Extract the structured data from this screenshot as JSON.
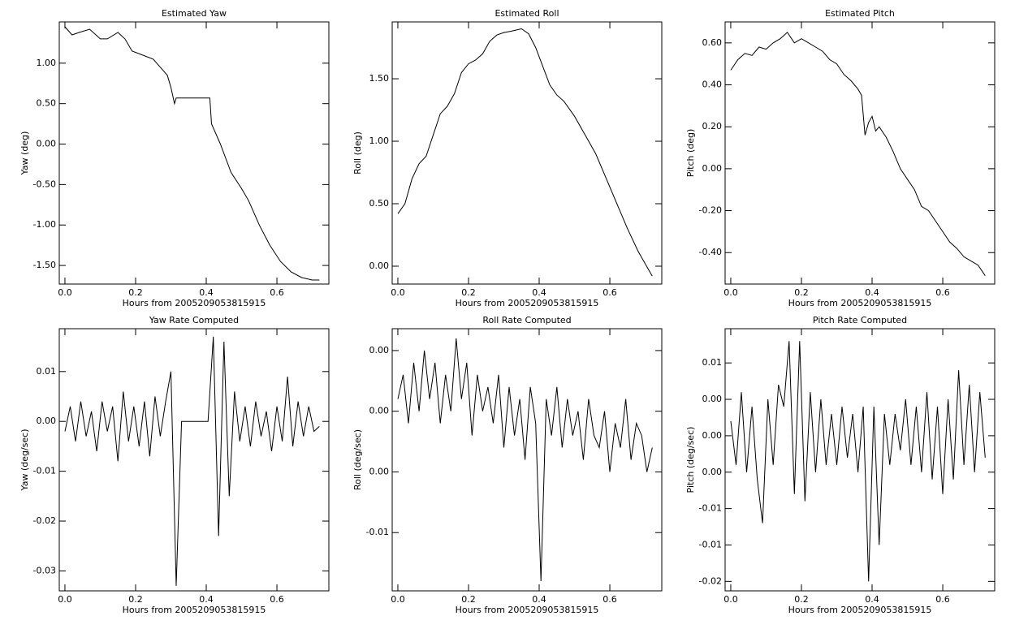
{
  "chart_data": [
    {
      "type": "line",
      "title": "Estimated Yaw",
      "xlabel": "Hours from 2005209053815915",
      "ylabel": "Yaw (deg)",
      "x": [
        0,
        0.02,
        0.04,
        0.07,
        0.1,
        0.12,
        0.15,
        0.17,
        0.19,
        0.22,
        0.25,
        0.27,
        0.29,
        0.3,
        0.31,
        0.315,
        0.41,
        0.415,
        0.44,
        0.47,
        0.5,
        0.52,
        0.55,
        0.58,
        0.61,
        0.64,
        0.67,
        0.7,
        0.72
      ],
      "values": [
        1.45,
        1.35,
        1.38,
        1.42,
        1.3,
        1.3,
        1.38,
        1.3,
        1.15,
        1.1,
        1.05,
        0.95,
        0.85,
        0.7,
        0.5,
        0.57,
        0.57,
        0.25,
        0,
        -0.35,
        -0.55,
        -0.7,
        -1.0,
        -1.25,
        -1.45,
        -1.58,
        -1.65,
        -1.68,
        -1.68
      ],
      "color": "#000000",
      "xlim": [
        -0.016,
        0.747
      ],
      "ylim": [
        -1.73,
        1.51
      ],
      "xticks": [
        {
          "value": 0,
          "label": "0.0"
        },
        {
          "value": 0.2,
          "label": "0.2"
        },
        {
          "value": 0.4,
          "label": "0.4"
        },
        {
          "value": 0.6,
          "label": "0.6"
        }
      ],
      "yticks": [
        {
          "value": -1.5,
          "label": "-1.50"
        },
        {
          "value": -1,
          "label": "-1.00"
        },
        {
          "value": -0.5,
          "label": "-0.50"
        },
        {
          "value": 0,
          "label": "0.00"
        },
        {
          "value": 0.5,
          "label": "0.50"
        },
        {
          "value": 1,
          "label": "1.00"
        }
      ]
    },
    {
      "type": "line",
      "title": "Estimated Roll",
      "xlabel": "Hours from 2005209053815915",
      "ylabel": "Roll (deg)",
      "x": [
        0,
        0.02,
        0.04,
        0.06,
        0.08,
        0.1,
        0.12,
        0.14,
        0.16,
        0.18,
        0.2,
        0.22,
        0.24,
        0.26,
        0.28,
        0.3,
        0.32,
        0.35,
        0.37,
        0.39,
        0.41,
        0.43,
        0.45,
        0.47,
        0.5,
        0.53,
        0.56,
        0.59,
        0.62,
        0.65,
        0.68,
        0.7,
        0.72
      ],
      "values": [
        0.42,
        0.5,
        0.7,
        0.82,
        0.88,
        1.05,
        1.22,
        1.28,
        1.38,
        1.55,
        1.62,
        1.65,
        1.7,
        1.8,
        1.85,
        1.87,
        1.88,
        1.9,
        1.86,
        1.75,
        1.6,
        1.45,
        1.37,
        1.32,
        1.2,
        1.05,
        0.9,
        0.7,
        0.5,
        0.3,
        0.12,
        0.02,
        -0.08
      ],
      "color": "#000000",
      "xlim": [
        -0.016,
        0.747
      ],
      "ylim": [
        -0.143,
        1.955
      ],
      "xticks": [
        {
          "value": 0,
          "label": "0.0"
        },
        {
          "value": 0.2,
          "label": "0.2"
        },
        {
          "value": 0.4,
          "label": "0.4"
        },
        {
          "value": 0.6,
          "label": "0.6"
        }
      ],
      "yticks": [
        {
          "value": 0,
          "label": "0.00"
        },
        {
          "value": 0.5,
          "label": "0.50"
        },
        {
          "value": 1,
          "label": "1.00"
        },
        {
          "value": 1.5,
          "label": "1.50"
        }
      ]
    },
    {
      "type": "line",
      "title": "Estimated Pitch",
      "xlabel": "Hours from 2005209053815915",
      "ylabel": "Pitch (deg)",
      "x": [
        0,
        0.02,
        0.04,
        0.06,
        0.08,
        0.1,
        0.12,
        0.14,
        0.16,
        0.18,
        0.2,
        0.22,
        0.24,
        0.26,
        0.28,
        0.3,
        0.32,
        0.34,
        0.36,
        0.37,
        0.38,
        0.39,
        0.4,
        0.41,
        0.42,
        0.44,
        0.46,
        0.48,
        0.5,
        0.52,
        0.54,
        0.56,
        0.58,
        0.6,
        0.62,
        0.64,
        0.66,
        0.68,
        0.7,
        0.72
      ],
      "values": [
        0.47,
        0.52,
        0.55,
        0.54,
        0.58,
        0.57,
        0.6,
        0.62,
        0.65,
        0.6,
        0.62,
        0.6,
        0.58,
        0.56,
        0.52,
        0.5,
        0.45,
        0.42,
        0.38,
        0.35,
        0.16,
        0.22,
        0.25,
        0.18,
        0.2,
        0.15,
        0.08,
        0,
        -0.05,
        -0.1,
        -0.18,
        -0.2,
        -0.25,
        -0.3,
        -0.35,
        -0.38,
        -0.42,
        -0.44,
        -0.46,
        -0.51
      ],
      "color": "#000000",
      "xlim": [
        -0.016,
        0.747
      ],
      "ylim": [
        -0.55,
        0.7
      ],
      "xticks": [
        {
          "value": 0,
          "label": "0.0"
        },
        {
          "value": 0.2,
          "label": "0.2"
        },
        {
          "value": 0.4,
          "label": "0.4"
        },
        {
          "value": 0.6,
          "label": "0.6"
        }
      ],
      "yticks": [
        {
          "value": -0.4,
          "label": "-0.40"
        },
        {
          "value": -0.2,
          "label": "-0.20"
        },
        {
          "value": 0,
          "label": "0.00"
        },
        {
          "value": 0.2,
          "label": "0.20"
        },
        {
          "value": 0.4,
          "label": "0.40"
        },
        {
          "value": 0.6,
          "label": "0.60"
        }
      ]
    },
    {
      "type": "line",
      "title": "Yaw Rate Computed",
      "xlabel": "Hours from 2005209053815915",
      "ylabel": "Yaw (deg/sec)",
      "x": [
        0,
        0.015,
        0.03,
        0.045,
        0.06,
        0.075,
        0.09,
        0.105,
        0.12,
        0.135,
        0.15,
        0.165,
        0.18,
        0.195,
        0.21,
        0.225,
        0.24,
        0.255,
        0.27,
        0.285,
        0.3,
        0.315,
        0.33,
        0.345,
        0.36,
        0.375,
        0.39,
        0.405,
        0.42,
        0.435,
        0.45,
        0.465,
        0.48,
        0.495,
        0.51,
        0.525,
        0.54,
        0.555,
        0.57,
        0.585,
        0.6,
        0.615,
        0.63,
        0.645,
        0.66,
        0.675,
        0.69,
        0.705,
        0.72
      ],
      "values": [
        -0.002,
        0.003,
        -0.004,
        0.004,
        -0.003,
        0.002,
        -0.006,
        0.004,
        -0.002,
        0.003,
        -0.008,
        0.006,
        -0.004,
        0.003,
        -0.005,
        0.004,
        -0.007,
        0.005,
        -0.003,
        0.004,
        0.01,
        -0.033,
        0,
        0,
        0,
        0,
        0,
        0,
        0.017,
        -0.023,
        0.016,
        -0.015,
        0.006,
        -0.004,
        0.003,
        -0.005,
        0.004,
        -0.003,
        0.002,
        -0.006,
        0.003,
        -0.004,
        0.009,
        -0.005,
        0.004,
        -0.003,
        0.003,
        -0.002,
        -0.001
      ],
      "color": "#000000",
      "xlim": [
        -0.016,
        0.747
      ],
      "ylim": [
        -0.034,
        0.0186
      ],
      "xticks": [
        {
          "value": 0,
          "label": "0.0"
        },
        {
          "value": 0.2,
          "label": "0.2"
        },
        {
          "value": 0.4,
          "label": "0.4"
        },
        {
          "value": 0.6,
          "label": "0.6"
        }
      ],
      "yticks": [
        -0.03,
        -0.02,
        -0.01,
        {
          "value": 0,
          "label": "0.00"
        },
        0.01
      ]
    },
    {
      "type": "line",
      "title": "Roll Rate Computed",
      "xlabel": "Hours from 2005209053815915",
      "ylabel": "Roll (deg/sec)",
      "x": [
        0,
        0.015,
        0.03,
        0.045,
        0.06,
        0.075,
        0.09,
        0.105,
        0.12,
        0.135,
        0.15,
        0.165,
        0.18,
        0.195,
        0.21,
        0.225,
        0.24,
        0.255,
        0.27,
        0.285,
        0.3,
        0.315,
        0.33,
        0.345,
        0.36,
        0.375,
        0.39,
        0.405,
        0.42,
        0.435,
        0.45,
        0.465,
        0.48,
        0.495,
        0.51,
        0.525,
        0.54,
        0.555,
        0.57,
        0.585,
        0.6,
        0.615,
        0.63,
        0.645,
        0.66,
        0.675,
        0.69,
        0.705,
        0.72
      ],
      "values": [
        0.001,
        0.003,
        -0.001,
        0.004,
        0,
        0.005,
        0.001,
        0.004,
        -0.001,
        0.003,
        0,
        0.006,
        0.001,
        0.004,
        -0.002,
        0.003,
        0,
        0.002,
        -0.001,
        0.003,
        -0.003,
        0.002,
        -0.002,
        0.001,
        -0.004,
        0.002,
        -0.001,
        -0.014,
        0.001,
        -0.002,
        0.002,
        -0.003,
        0.001,
        -0.002,
        0,
        -0.004,
        0.001,
        -0.002,
        -0.003,
        0,
        -0.005,
        -0.001,
        -0.003,
        0.001,
        -0.004,
        -0.001,
        -0.002,
        -0.005,
        -0.003
      ],
      "color": "#000000",
      "xlim": [
        -0.016,
        0.747
      ],
      "ylim": [
        -0.0148,
        0.0068
      ],
      "xticks": [
        {
          "value": 0,
          "label": "0.0"
        },
        {
          "value": 0.2,
          "label": "0.2"
        },
        {
          "value": 0.4,
          "label": "0.4"
        },
        {
          "value": 0.6,
          "label": "0.6"
        }
      ],
      "yticks": [
        {
          "value": -0.01,
          "label": "-0.01"
        },
        {
          "value": -0.005,
          "label": "0.00"
        },
        {
          "value": 0,
          "label": "0.00"
        },
        {
          "value": 0.005,
          "label": "0.00"
        }
      ]
    },
    {
      "type": "line",
      "title": "Pitch Rate Computed",
      "xlabel": "Hours from 2005209053815915",
      "ylabel": "Pitch (deg/sec)",
      "x": [
        0,
        0.015,
        0.03,
        0.045,
        0.06,
        0.075,
        0.09,
        0.105,
        0.12,
        0.135,
        0.15,
        0.165,
        0.18,
        0.195,
        0.21,
        0.225,
        0.24,
        0.255,
        0.27,
        0.285,
        0.3,
        0.315,
        0.33,
        0.345,
        0.36,
        0.375,
        0.39,
        0.405,
        0.42,
        0.435,
        0.45,
        0.465,
        0.48,
        0.495,
        0.51,
        0.525,
        0.54,
        0.555,
        0.57,
        0.585,
        0.6,
        0.615,
        0.63,
        0.645,
        0.66,
        0.675,
        0.69,
        0.705,
        0.72
      ],
      "values": [
        0.002,
        -0.004,
        0.006,
        -0.005,
        0.004,
        -0.006,
        -0.012,
        0.005,
        -0.004,
        0.007,
        0.004,
        0.013,
        -0.008,
        0.013,
        -0.009,
        0.006,
        -0.005,
        0.005,
        -0.004,
        0.003,
        -0.004,
        0.004,
        -0.003,
        0.003,
        -0.005,
        0.004,
        -0.02,
        0.004,
        -0.015,
        0.003,
        -0.004,
        0.003,
        -0.002,
        0.005,
        -0.004,
        0.004,
        -0.005,
        0.006,
        -0.006,
        0.004,
        -0.008,
        0.005,
        -0.006,
        0.009,
        -0.004,
        0.007,
        -0.005,
        0.006,
        -0.003
      ],
      "color": "#000000",
      "xlim": [
        -0.016,
        0.747
      ],
      "ylim": [
        -0.0213,
        0.0147
      ],
      "xticks": [
        {
          "value": 0,
          "label": "0.0"
        },
        {
          "value": 0.2,
          "label": "0.2"
        },
        {
          "value": 0.4,
          "label": "0.4"
        },
        {
          "value": 0.6,
          "label": "0.6"
        }
      ],
      "yticks": [
        {
          "value": -0.02,
          "label": "-0.02"
        },
        {
          "value": -0.015,
          "label": "-0.01"
        },
        {
          "value": -0.01,
          "label": "-0.01"
        },
        {
          "value": -0.005,
          "label": "0.00"
        },
        {
          "value": 0,
          "label": "0.00"
        },
        {
          "value": 0.005,
          "label": "0.00"
        },
        {
          "value": 0.01,
          "label": "0.01"
        }
      ]
    }
  ]
}
